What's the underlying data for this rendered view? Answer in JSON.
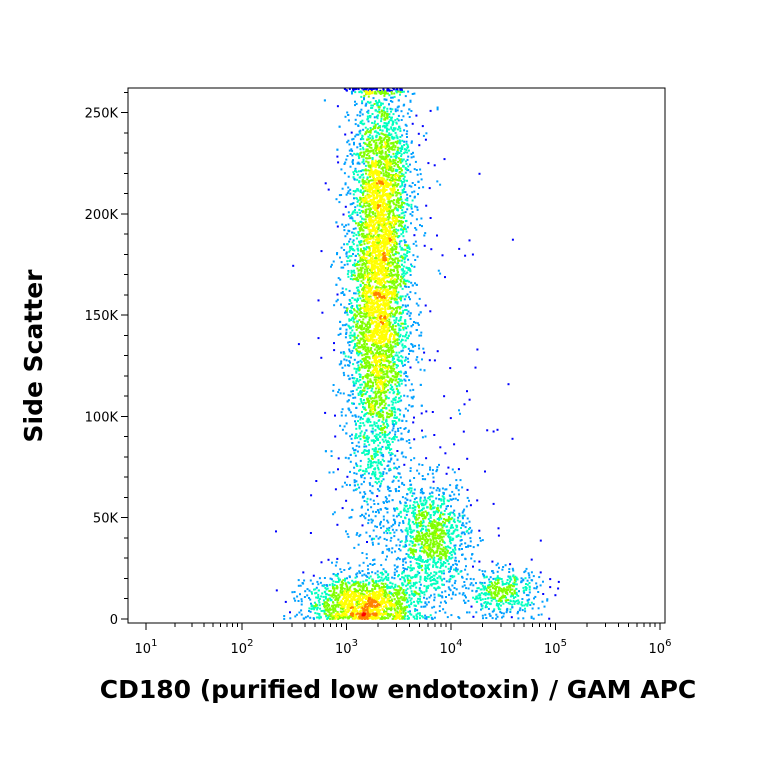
{
  "chart_data": {
    "type": "scatter",
    "title": "",
    "xlabel": "CD180 (purified low endotoxin) / GAM APC",
    "ylabel": "Side Scatter",
    "x_scale": "log",
    "xlim": [
      0,
      1000000
    ],
    "ylim": [
      0,
      262144
    ],
    "x_ticks": [
      {
        "value": 10,
        "base": "10",
        "exp": "1"
      },
      {
        "value": 100,
        "base": "10",
        "exp": "2"
      },
      {
        "value": 1000,
        "base": "10",
        "exp": "3"
      },
      {
        "value": 10000,
        "base": "10",
        "exp": "4"
      },
      {
        "value": 100000,
        "base": "10",
        "exp": "5"
      },
      {
        "value": 1000000,
        "base": "10",
        "exp": "6"
      }
    ],
    "y_ticks": [
      {
        "value": 0,
        "label": "0"
      },
      {
        "value": 50000,
        "label": "50K"
      },
      {
        "value": 100000,
        "label": "100K"
      },
      {
        "value": 150000,
        "label": "150K"
      },
      {
        "value": 200000,
        "label": "200K"
      },
      {
        "value": 250000,
        "label": "250K"
      }
    ],
    "grid": false,
    "density_colormap": [
      "#0000ff",
      "#00a0ff",
      "#00ffc0",
      "#80ff00",
      "#ffff00",
      "#ff8000",
      "#ff0000"
    ],
    "populations": [
      {
        "x_center": 2000,
        "x_spread_decades": 0.15,
        "y_center": 155000,
        "y_spread": 48000,
        "weight": 0.52
      },
      {
        "x_center": 2200,
        "x_spread_decades": 0.14,
        "y_center": 222000,
        "y_spread": 24000,
        "weight": 0.12
      },
      {
        "x_center": 1500,
        "x_spread_decades": 0.28,
        "y_center": 8000,
        "y_spread": 7000,
        "weight": 0.16
      },
      {
        "x_center": 6500,
        "x_spread_decades": 0.18,
        "y_center": 40000,
        "y_spread": 14000,
        "weight": 0.12
      },
      {
        "x_center": 30000,
        "x_spread_decades": 0.2,
        "y_center": 13000,
        "y_spread": 6000,
        "weight": 0.05
      },
      {
        "x_center": 3000,
        "x_spread_decades": 0.45,
        "y_center": 90000,
        "y_spread": 70000,
        "weight": 0.03
      }
    ]
  }
}
